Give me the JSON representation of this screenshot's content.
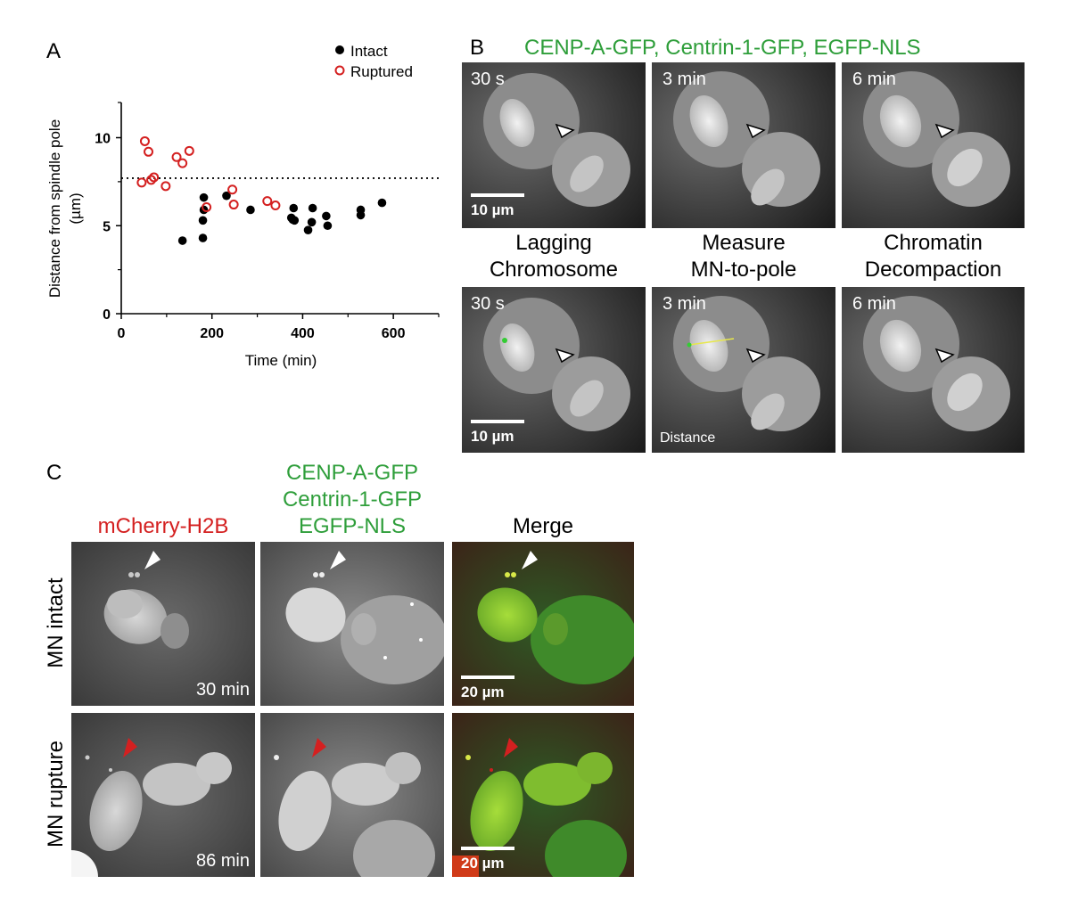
{
  "panel_a": {
    "letter": "A",
    "chart_data": {
      "type": "scatter",
      "xlabel": "Time (min)",
      "ylabel_line1": "Distance from spindle pole",
      "ylabel_line2": "(µm)",
      "x_ticks": [
        "0",
        "200",
        "400",
        "600"
      ],
      "y_ticks": [
        "0",
        "5",
        "10"
      ],
      "xlim": [
        0,
        700
      ],
      "ylim": [
        0,
        12
      ],
      "threshold": 7.7,
      "legend": [
        "Intact",
        "Ruptured"
      ],
      "series": [
        {
          "name": "Intact",
          "style": "filled",
          "color": "#000000",
          "points": [
            [
              135,
              4.15
            ],
            [
              180,
              4.3
            ],
            [
              180,
              5.3
            ],
            [
              182,
              5.9
            ],
            [
              182,
              6.6
            ],
            [
              232,
              6.7
            ],
            [
              285,
              5.9
            ],
            [
              375,
              5.45
            ],
            [
              378,
              5.35
            ],
            [
              380,
              6.0
            ],
            [
              382,
              5.3
            ],
            [
              412,
              4.75
            ],
            [
              420,
              5.2
            ],
            [
              422,
              6.0
            ],
            [
              452,
              5.55
            ],
            [
              455,
              5.0
            ],
            [
              528,
              5.9
            ],
            [
              528,
              5.6
            ],
            [
              575,
              6.3
            ]
          ]
        },
        {
          "name": "Ruptured",
          "style": "open",
          "color": "#d42020",
          "points": [
            [
              45,
              7.45
            ],
            [
              52,
              9.8
            ],
            [
              60,
              9.2
            ],
            [
              66,
              7.6
            ],
            [
              72,
              7.75
            ],
            [
              98,
              7.25
            ],
            [
              122,
              8.9
            ],
            [
              135,
              8.55
            ],
            [
              150,
              9.25
            ],
            [
              188,
              6.05
            ],
            [
              245,
              7.05
            ],
            [
              248,
              6.2
            ],
            [
              322,
              6.4
            ],
            [
              340,
              6.15
            ]
          ]
        }
      ]
    }
  },
  "panel_b": {
    "letter": "B",
    "title": "CENP-A-GFP, Centrin-1-GFP, EGFP-NLS",
    "top_row": {
      "timestamps": [
        "30 s",
        "3 min",
        "6 min"
      ]
    },
    "captions": [
      {
        "line1": "Lagging",
        "line2": "Chromosome"
      },
      {
        "line1": "Measure",
        "line2": "MN-to-pole"
      },
      {
        "line1": "Chromatin",
        "line2": "Decompaction"
      }
    ],
    "bottom_row": {
      "timestamps": [
        "30 s",
        "3 min",
        "6 min"
      ],
      "distance_label": "Distance"
    },
    "scale_label": "10 µm",
    "colors": {
      "title": "#2e9e3a",
      "measure_line": "#e8e84a",
      "pole_marker": "#33cc33"
    }
  },
  "panel_c": {
    "letter": "C",
    "col_labels": {
      "h2b": "mCherry-H2B",
      "gfp_line1": "CENP-A-GFP",
      "gfp_line2": "Centrin-1-GFP",
      "gfp_line3": "EGFP-NLS",
      "merge": "Merge"
    },
    "row_labels": [
      "MN intact",
      "MN rupture"
    ],
    "timestamps": [
      "30 min",
      "86 min"
    ],
    "scale_label": "20 µm",
    "colors": {
      "h2b_label": "#d42020",
      "gfp_label": "#2e9e3a",
      "intact_arrow": "#ffffff",
      "rupture_arrow": "#d42020"
    }
  }
}
